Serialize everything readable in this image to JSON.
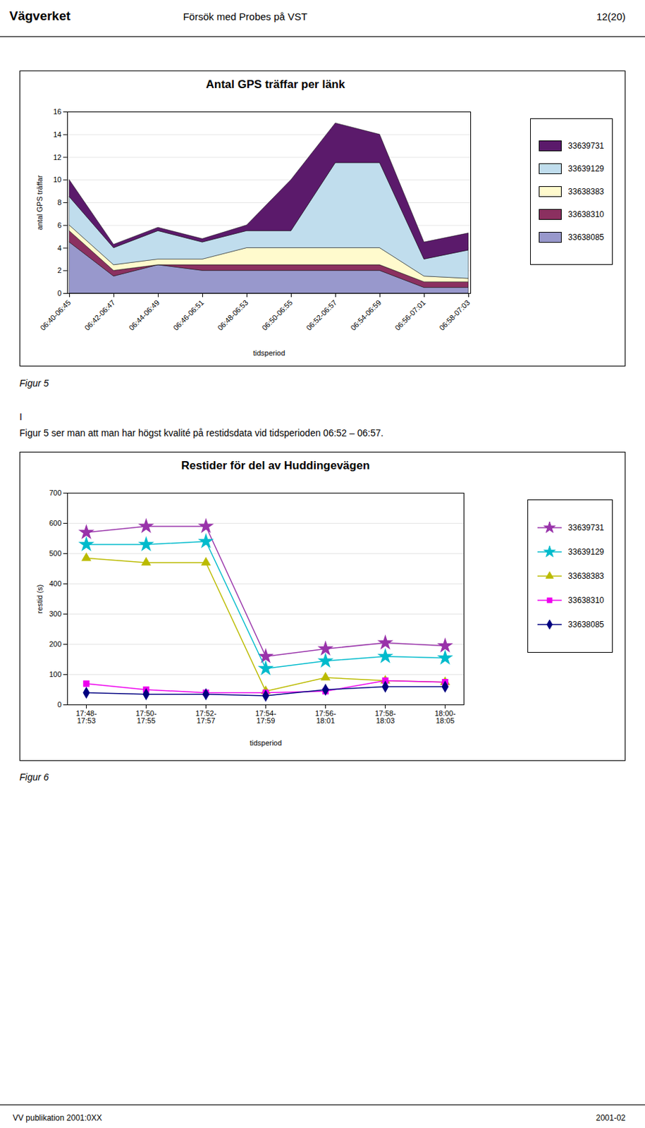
{
  "header": [
    "Vägverket",
    "Försök med Probes på VST",
    "12(20)"
  ],
  "footer": [
    "VV publikation 2001:0XX",
    "2001-02"
  ],
  "chart_data": [
    {
      "type": "area",
      "title": "Antal GPS träffar per länk",
      "xlabel": "tidsperiod",
      "ylabel": "antal GPS träffar",
      "categories": [
        "06:40-06:45",
        "06:42-06:47",
        "06:44-06:49",
        "06:46-06:51",
        "06:48-06:53",
        "06:50-06:55",
        "06:52-06:57",
        "06:54-06:59",
        "06:56-07:01",
        "06:58-07:03"
      ],
      "series": [
        {
          "name": "33638085",
          "color": "#9898CC",
          "values": [
            4.5,
            1.5,
            2.5,
            2.0,
            2.0,
            2.0,
            2.0,
            2.0,
            0.5,
            0.5
          ]
        },
        {
          "name": "33638310",
          "color": "#8B3060",
          "values": [
            1.0,
            0.5,
            0.0,
            0.5,
            0.5,
            0.5,
            0.5,
            0.5,
            0.5,
            0.5
          ]
        },
        {
          "name": "33638383",
          "color": "#FFFACD",
          "values": [
            0.5,
            0.5,
            0.5,
            0.5,
            1.5,
            1.5,
            1.5,
            1.5,
            0.5,
            0.3
          ]
        },
        {
          "name": "33639129",
          "color": "#C0DDED",
          "values": [
            2.5,
            1.5,
            2.5,
            1.5,
            1.5,
            1.5,
            7.5,
            7.5,
            1.5,
            2.5
          ]
        },
        {
          "name": "33639731",
          "color": "#5B1A6B",
          "values": [
            1.5,
            0.3,
            0.3,
            0.3,
            0.5,
            4.5,
            3.5,
            2.5,
            1.5,
            1.5
          ]
        }
      ],
      "stacked": true,
      "ylim": [
        0,
        16
      ],
      "yticks": [
        0,
        2,
        4,
        6,
        8,
        10,
        12,
        14,
        16
      ],
      "grid": true,
      "legend": "right",
      "annotations": [
        "Figur 5",
        "I",
        "Figur 5 ser man att man har högst kvalité på restidsdata vid tidsperioden 06:52 – 06:57."
      ]
    },
    {
      "type": "line",
      "title": "Restider för del av Huddingevägen",
      "xlabel": "tidsperiod",
      "ylabel": "restid (s)",
      "categories": [
        "17:48-\n17:53",
        "17:50-\n17:55",
        "17:52-\n17:57",
        "17:54-\n17:59",
        "17:56-\n18:01",
        "17:58-\n18:03",
        "18:00-\n18:05"
      ],
      "series": [
        {
          "name": "33639731",
          "color": "#9933AA",
          "marker": "star",
          "values": [
            570,
            590,
            590,
            160,
            185,
            205,
            195
          ]
        },
        {
          "name": "33639129",
          "color": "#00BBCC",
          "marker": "star",
          "values": [
            530,
            530,
            540,
            120,
            145,
            160,
            155
          ]
        },
        {
          "name": "33638383",
          "color": "#BBBB00",
          "marker": "triangle",
          "values": [
            485,
            470,
            470,
            45,
            90,
            80,
            75
          ]
        },
        {
          "name": "33638310",
          "color": "#EE00EE",
          "marker": "square",
          "values": [
            70,
            50,
            40,
            40,
            45,
            80,
            75
          ]
        },
        {
          "name": "33638085",
          "color": "#000080",
          "marker": "diamond",
          "values": [
            40,
            35,
            35,
            30,
            50,
            60,
            60
          ]
        }
      ],
      "ylim": [
        0,
        700
      ],
      "yticks": [
        0,
        100,
        200,
        300,
        400,
        500,
        600,
        700
      ],
      "grid": true,
      "legend": "right",
      "annotations": [
        "Figur 6"
      ]
    }
  ]
}
